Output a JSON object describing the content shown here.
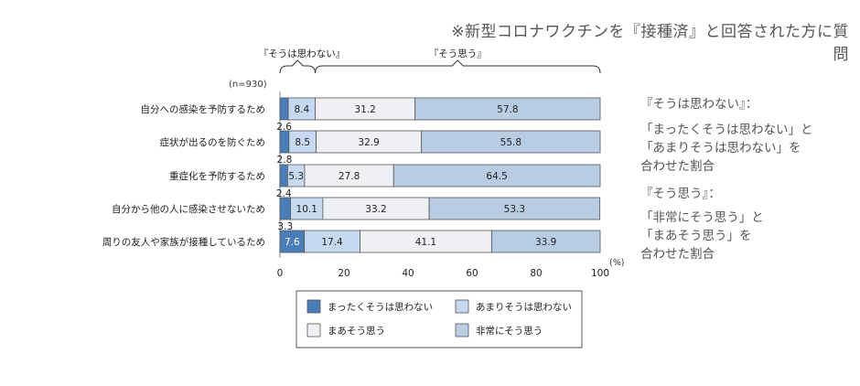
{
  "header": {
    "title": "※新型コロナワクチンを『接種済』と回答された方に質問"
  },
  "notes": [
    {
      "title": "『そうは思わない』：",
      "lines": [
        "「まったくそうは思わない」と",
        "「あまりそうは思わない」を",
        "合わせた割合"
      ]
    },
    {
      "title": "『そう思う』：",
      "lines": [
        "「非常にそう思う」と",
        "「まあそう思う」を",
        "合わせた割合"
      ]
    }
  ],
  "chart_data": {
    "type": "bar",
    "orientation": "horizontal",
    "stacked": true,
    "sample_size": "(n=930)",
    "unit": "(%)",
    "xlim": [
      0,
      100
    ],
    "xticks": [
      0,
      20,
      40,
      60,
      80,
      100
    ],
    "group_brackets": [
      {
        "label": "『そうは思わない』",
        "from": 0,
        "to": 11
      },
      {
        "label": "『そう思う』",
        "from": 11,
        "to": 100
      }
    ],
    "categories": [
      "自分への感染を予防するため",
      "症状が出るのを防ぐため",
      "重症化を予防するため",
      "自分から他の人に感染させないため",
      "周りの友人や家族が接種しているため"
    ],
    "series": [
      {
        "name": "まったくそうは思わない",
        "color": "#4a7ebb",
        "values": [
          2.6,
          2.8,
          2.4,
          3.3,
          7.6
        ]
      },
      {
        "name": "あまりそうは思わない",
        "color": "#c5d9f1",
        "values": [
          8.4,
          8.5,
          5.3,
          10.1,
          17.4
        ]
      },
      {
        "name": "まあそう思う",
        "color": "#eef0f4",
        "values": [
          31.2,
          32.9,
          27.8,
          33.2,
          41.1
        ]
      },
      {
        "name": "非常にそう思う",
        "color": "#b8cce4",
        "values": [
          57.8,
          55.8,
          64.5,
          53.3,
          33.9
        ]
      }
    ],
    "value_labels": [
      [
        "2.6",
        "8.4",
        "31.2",
        "57.8"
      ],
      [
        "2.8",
        "8.5",
        "32.9",
        "55.8"
      ],
      [
        "2.4",
        "5.3",
        "27.8",
        "64.5"
      ],
      [
        "3.3",
        "10.1",
        "33.2",
        "53.3"
      ],
      [
        "7.6",
        "17.4",
        "41.1",
        "33.9"
      ]
    ],
    "legend_position": "bottom"
  }
}
